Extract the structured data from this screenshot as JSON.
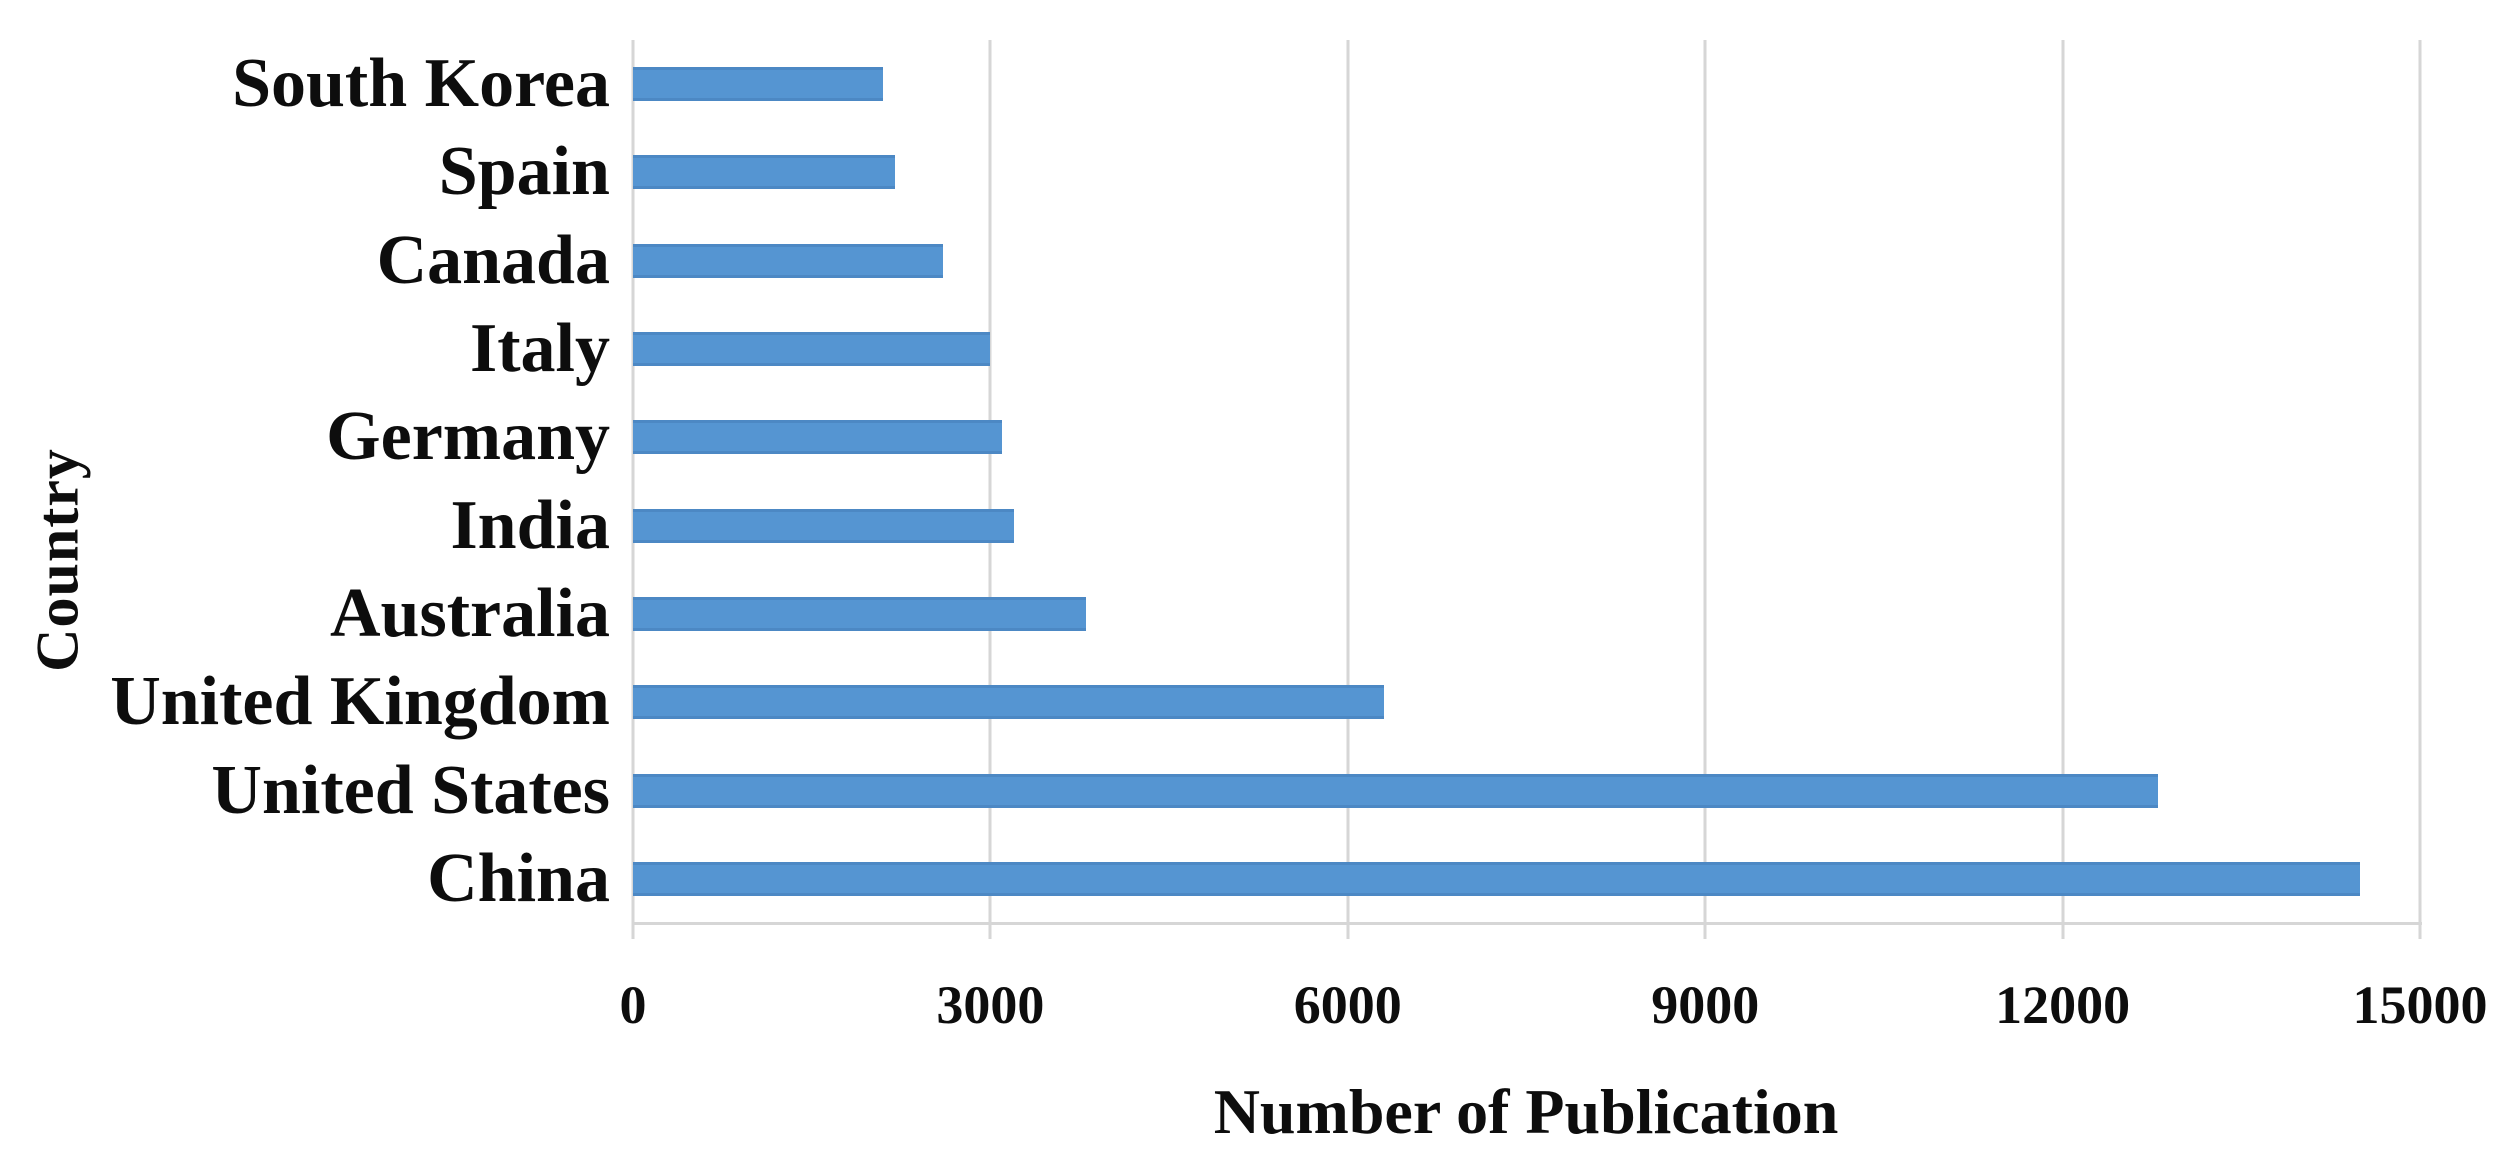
{
  "figure": {
    "background": "#ffffff"
  },
  "chart_data": {
    "type": "bar",
    "orientation": "horizontal",
    "title": "",
    "categories": [
      "South Korea",
      "Spain",
      "Canada",
      "Italy",
      "Germany",
      "India",
      "Australia",
      "United Kingdom",
      "United States",
      "China"
    ],
    "values": [
      2100,
      2200,
      2600,
      3000,
      3100,
      3200,
      3800,
      6300,
      12800,
      14500
    ],
    "xlabel": "Number of Publication",
    "ylabel": "Country",
    "xlim": [
      0,
      15000
    ],
    "xticks": [
      "0",
      "3000",
      "6000",
      "9000",
      "12000",
      "15000"
    ],
    "xtick_values": [
      0,
      3000,
      6000,
      9000,
      12000,
      15000
    ],
    "grid": true,
    "legend_position": "none",
    "bar_color": "#5595D2",
    "bar_edge_color": "#4C88C4",
    "gridline_color": "#D6D6D6",
    "text_color": "#0D0D0D"
  }
}
